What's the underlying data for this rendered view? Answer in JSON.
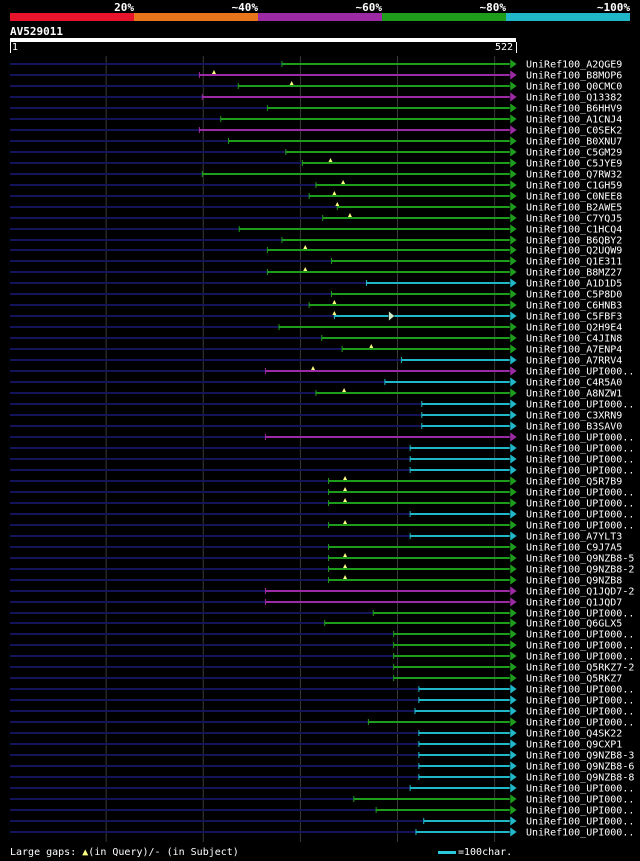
{
  "legend": {
    "labels": [
      "20%",
      "~40%",
      "~60%",
      "~80%",
      "~100%"
    ],
    "colors": [
      "#e8142c",
      "#e8741c",
      "#9c2aa4",
      "#1e9c1c",
      "#20b8c8"
    ]
  },
  "query": {
    "id": "AV529011",
    "length": 522,
    "start_label": "1",
    "end_label": "522"
  },
  "footer": {
    "large_gaps_prefix": "Large gaps:",
    "in_query_label": "(in Query)/",
    "in_subject_label": "- (in Subject)",
    "scale_label": "=100char."
  },
  "chart_data": {
    "type": "alignment",
    "x_range": [
      1,
      522
    ],
    "grid_positions": [
      100,
      200,
      300,
      400,
      500
    ],
    "hits": [
      {
        "label": "UniRef100_A2QGE9",
        "start": 281,
        "end": 522,
        "identity": "~80%"
      },
      {
        "label": "UniRef100_B8MOP6",
        "start": 196,
        "end": 522,
        "identity": "~60%",
        "gap_query": 211
      },
      {
        "label": "UniRef100_Q0CMC0",
        "start": 236,
        "end": 522,
        "identity": "~80%",
        "gap_query": 291
      },
      {
        "label": "UniRef100_Q13382",
        "start": 199,
        "end": 522,
        "identity": "~60%"
      },
      {
        "label": "UniRef100_B6HHV9",
        "start": 266,
        "end": 522,
        "identity": "~80%"
      },
      {
        "label": "UniRef100_A1CNJ4",
        "start": 218,
        "end": 522,
        "identity": "~80%"
      },
      {
        "label": "UniRef100_C0SEK2",
        "start": 196,
        "end": 522,
        "identity": "~60%"
      },
      {
        "label": "UniRef100_B0XNU7",
        "start": 226,
        "end": 522,
        "identity": "~80%"
      },
      {
        "label": "UniRef100_C5GM29",
        "start": 285,
        "end": 522,
        "identity": "~80%"
      },
      {
        "label": "UniRef100_C5JYE9",
        "start": 302,
        "end": 522,
        "identity": "~80%",
        "gap_query": 331
      },
      {
        "label": "UniRef100_Q7RW32",
        "start": 199,
        "end": 522,
        "identity": "~80%"
      },
      {
        "label": "UniRef100_C1GH59",
        "start": 316,
        "end": 522,
        "identity": "~80%",
        "gap_query": 344
      },
      {
        "label": "UniRef100_C0NEE8",
        "start": 309,
        "end": 522,
        "identity": "~80%",
        "gap_query": 335
      },
      {
        "label": "UniRef100_B2AWE5",
        "start": 338,
        "end": 522,
        "identity": "~80%",
        "gap_query": 338
      },
      {
        "label": "UniRef100_C7YQJ5",
        "start": 323,
        "end": 522,
        "identity": "~80%",
        "gap_query": 351
      },
      {
        "label": "UniRef100_C1HCQ4",
        "start": 237,
        "end": 522,
        "identity": "~80%"
      },
      {
        "label": "UniRef100_B6QBY2",
        "start": 281,
        "end": 522,
        "identity": "~80%"
      },
      {
        "label": "UniRef100_Q2UQW9",
        "start": 266,
        "end": 522,
        "identity": "~80%",
        "gap_query": 305
      },
      {
        "label": "UniRef100_Q1E311",
        "start": 332,
        "end": 522,
        "identity": "~80%"
      },
      {
        "label": "UniRef100_B8MZ27",
        "start": 266,
        "end": 522,
        "identity": "~80%",
        "gap_query": 305
      },
      {
        "label": "UniRef100_A1D1D5",
        "start": 368,
        "end": 522,
        "identity": "~100%"
      },
      {
        "label": "UniRef100_C5P8D0",
        "start": 332,
        "end": 522,
        "identity": "~80%"
      },
      {
        "label": "UniRef100_C6HNB3",
        "start": 309,
        "end": 522,
        "identity": "~80%",
        "gap_query": 335
      },
      {
        "label": "UniRef100_C5FBF3",
        "start": 335,
        "end": 522,
        "identity": "~100%",
        "gap_query": 335,
        "gap_subject": 397
      },
      {
        "label": "UniRef100_Q2H9E4",
        "start": 278,
        "end": 522,
        "identity": "~80%"
      },
      {
        "label": "UniRef100_C4JIN8",
        "start": 322,
        "end": 522,
        "identity": "~80%"
      },
      {
        "label": "UniRef100_A7ENP4",
        "start": 343,
        "end": 522,
        "identity": "~80%",
        "gap_query": 373
      },
      {
        "label": "UniRef100_A7RRV4",
        "start": 404,
        "end": 522,
        "identity": "~100%"
      },
      {
        "label": "UniRef100_UPI000..",
        "start": 264,
        "end": 522,
        "identity": "~60%",
        "gap_query": 313
      },
      {
        "label": "UniRef100_C4R5A0",
        "start": 387,
        "end": 522,
        "identity": "~100%"
      },
      {
        "label": "UniRef100_A8NZW1",
        "start": 316,
        "end": 522,
        "identity": "~80%",
        "gap_query": 345
      },
      {
        "label": "UniRef100_UPI000..",
        "start": 425,
        "end": 522,
        "identity": "~100%"
      },
      {
        "label": "UniRef100_C3XRN9",
        "start": 425,
        "end": 522,
        "identity": "~100%"
      },
      {
        "label": "UniRef100_B3SAV0",
        "start": 425,
        "end": 522,
        "identity": "~100%"
      },
      {
        "label": "UniRef100_UPI000..",
        "start": 264,
        "end": 522,
        "identity": "~60%"
      },
      {
        "label": "UniRef100_UPI000..",
        "start": 413,
        "end": 522,
        "identity": "~100%"
      },
      {
        "label": "UniRef100_UPI000..",
        "start": 413,
        "end": 522,
        "identity": "~100%"
      },
      {
        "label": "UniRef100_UPI000..",
        "start": 413,
        "end": 522,
        "identity": "~100%"
      },
      {
        "label": "UniRef100_Q5R7B9",
        "start": 329,
        "end": 522,
        "identity": "~80%",
        "gap_query": 346
      },
      {
        "label": "UniRef100_UPI000..",
        "start": 329,
        "end": 522,
        "identity": "~80%",
        "gap_query": 346
      },
      {
        "label": "UniRef100_UPI000..",
        "start": 329,
        "end": 522,
        "identity": "~80%",
        "gap_query": 346
      },
      {
        "label": "UniRef100_UPI000..",
        "start": 413,
        "end": 522,
        "identity": "~100%"
      },
      {
        "label": "UniRef100_UPI000..",
        "start": 329,
        "end": 522,
        "identity": "~80%",
        "gap_query": 346
      },
      {
        "label": "UniRef100_A7YLT3",
        "start": 413,
        "end": 522,
        "identity": "~100%"
      },
      {
        "label": "UniRef100_C9J7A5",
        "start": 329,
        "end": 522,
        "identity": "~80%"
      },
      {
        "label": "UniRef100_Q9NZB8-5",
        "start": 329,
        "end": 522,
        "identity": "~80%",
        "gap_query": 346
      },
      {
        "label": "UniRef100_Q9NZB8-2",
        "start": 329,
        "end": 522,
        "identity": "~80%",
        "gap_query": 346
      },
      {
        "label": "UniRef100_Q9NZB8",
        "start": 329,
        "end": 522,
        "identity": "~80%",
        "gap_query": 346
      },
      {
        "label": "UniRef100_Q1JQD7-2",
        "start": 264,
        "end": 522,
        "identity": "~60%"
      },
      {
        "label": "UniRef100_Q1JQD7",
        "start": 264,
        "end": 522,
        "identity": "~60%"
      },
      {
        "label": "UniRef100_UPI000..",
        "start": 375,
        "end": 522,
        "identity": "~80%"
      },
      {
        "label": "UniRef100_Q6GLX5",
        "start": 325,
        "end": 522,
        "identity": "~80%"
      },
      {
        "label": "UniRef100_UPI000..",
        "start": 396,
        "end": 522,
        "identity": "~80%"
      },
      {
        "label": "UniRef100_UPI000..",
        "start": 396,
        "end": 522,
        "identity": "~80%"
      },
      {
        "label": "UniRef100_UPI000..",
        "start": 396,
        "end": 522,
        "identity": "~80%"
      },
      {
        "label": "UniRef100_Q5RKZ7-2",
        "start": 396,
        "end": 522,
        "identity": "~80%"
      },
      {
        "label": "UniRef100_Q5RKZ7",
        "start": 396,
        "end": 522,
        "identity": "~80%"
      },
      {
        "label": "UniRef100_UPI000..",
        "start": 422,
        "end": 522,
        "identity": "~100%"
      },
      {
        "label": "UniRef100_UPI000..",
        "start": 422,
        "end": 522,
        "identity": "~100%"
      },
      {
        "label": "UniRef100_UPI000..",
        "start": 418,
        "end": 522,
        "identity": "~100%"
      },
      {
        "label": "UniRef100_UPI000..",
        "start": 370,
        "end": 522,
        "identity": "~80%"
      },
      {
        "label": "UniRef100_Q4SK22",
        "start": 422,
        "end": 522,
        "identity": "~100%"
      },
      {
        "label": "UniRef100_Q9CXP1",
        "start": 422,
        "end": 522,
        "identity": "~100%"
      },
      {
        "label": "UniRef100_Q9NZB8-3",
        "start": 422,
        "end": 522,
        "identity": "~100%"
      },
      {
        "label": "UniRef100_Q9NZB8-6",
        "start": 422,
        "end": 522,
        "identity": "~100%"
      },
      {
        "label": "UniRef100_Q9NZB8-8",
        "start": 422,
        "end": 522,
        "identity": "~100%"
      },
      {
        "label": "UniRef100_UPI000..",
        "start": 413,
        "end": 522,
        "identity": "~100%"
      },
      {
        "label": "UniRef100_UPI000..",
        "start": 355,
        "end": 522,
        "identity": "~80%"
      },
      {
        "label": "UniRef100_UPI000..",
        "start": 378,
        "end": 522,
        "identity": "~80%"
      },
      {
        "label": "UniRef100_UPI000..",
        "start": 427,
        "end": 522,
        "identity": "~100%"
      },
      {
        "label": "UniRef100_UPI000..",
        "start": 419,
        "end": 522,
        "identity": "~100%"
      }
    ]
  }
}
